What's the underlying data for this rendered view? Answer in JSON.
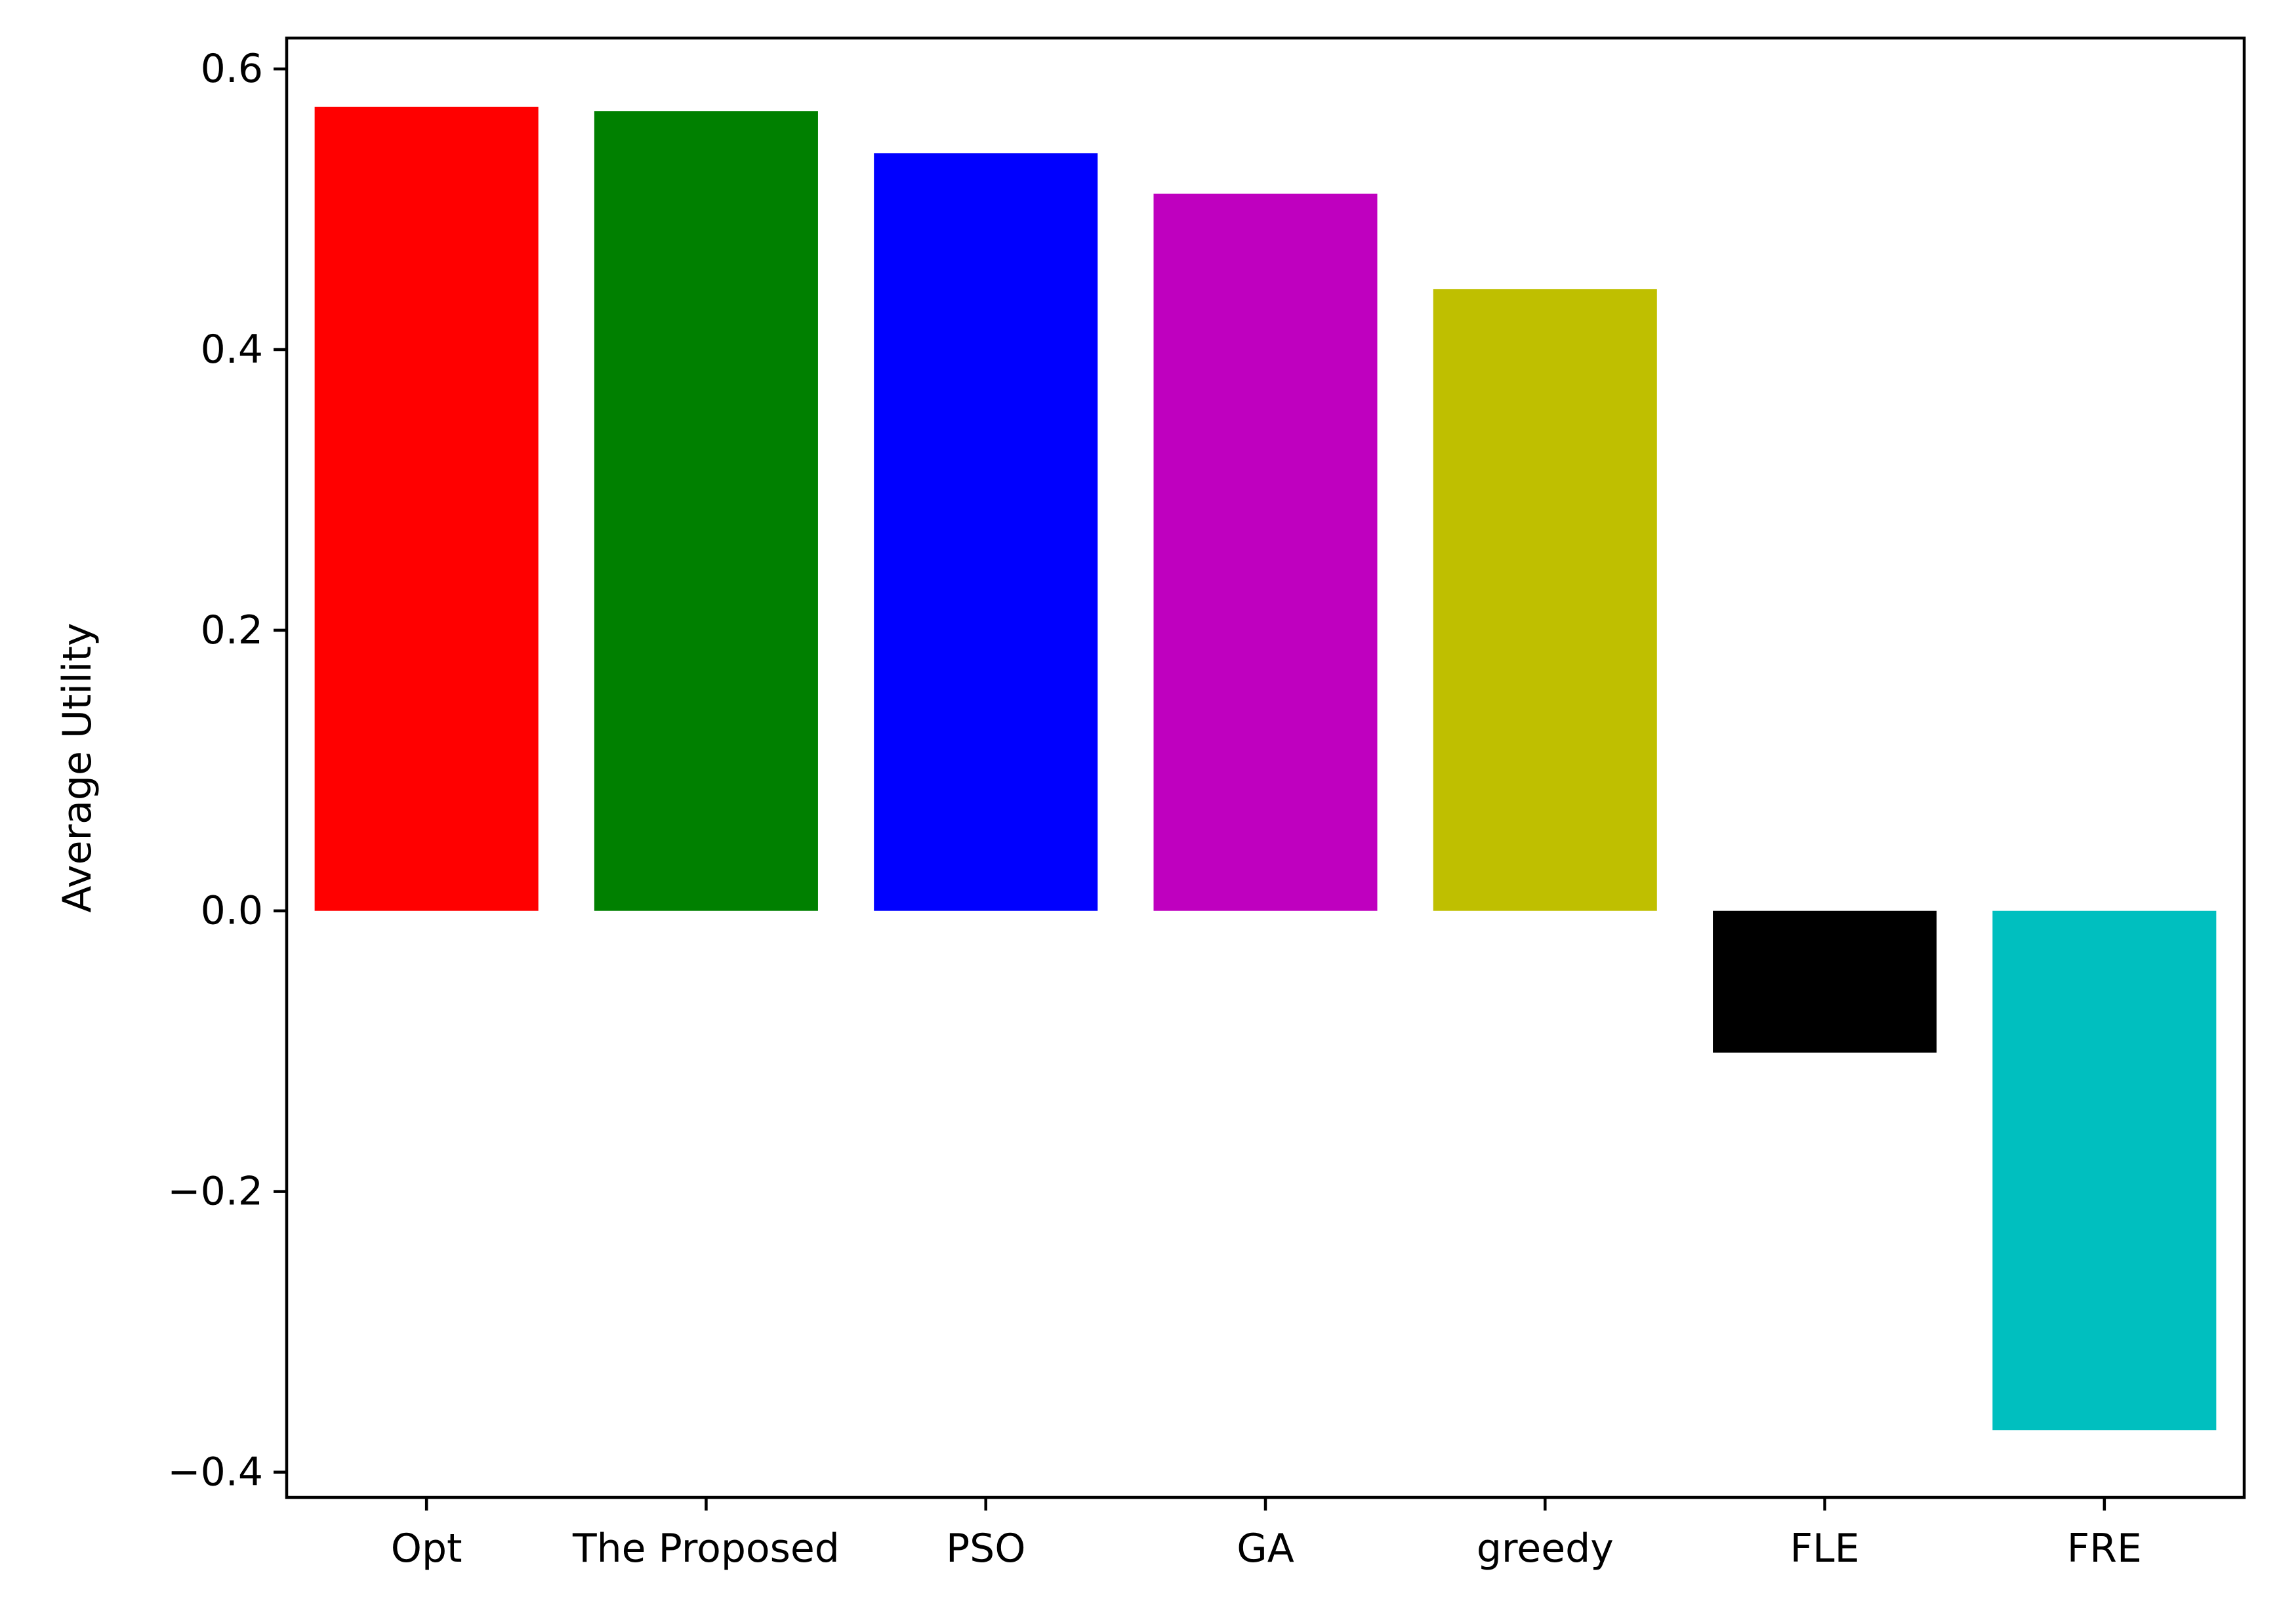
{
  "chart_data": {
    "type": "bar",
    "categories": [
      "Opt",
      "The Proposed",
      "PSO",
      "GA",
      "greedy",
      "FLE",
      "FRE"
    ],
    "values": [
      0.573,
      0.57,
      0.54,
      0.511,
      0.443,
      -0.101,
      -0.37
    ],
    "colors": [
      "#ff0000",
      "#008000",
      "#0000ff",
      "#bf00bf",
      "#bfbf00",
      "#000000",
      "#00bfbf"
    ],
    "title": "",
    "xlabel": "",
    "ylabel": "Average Utility",
    "ylim": [
      -0.418,
      0.622
    ],
    "yticks": [
      -0.4,
      -0.2,
      0.0,
      0.2,
      0.4,
      0.6
    ],
    "ytick_labels": [
      "−0.4",
      "−0.2",
      "0.0",
      "0.2",
      "0.4",
      "0.6"
    ],
    "grid": false,
    "legend": "none"
  }
}
